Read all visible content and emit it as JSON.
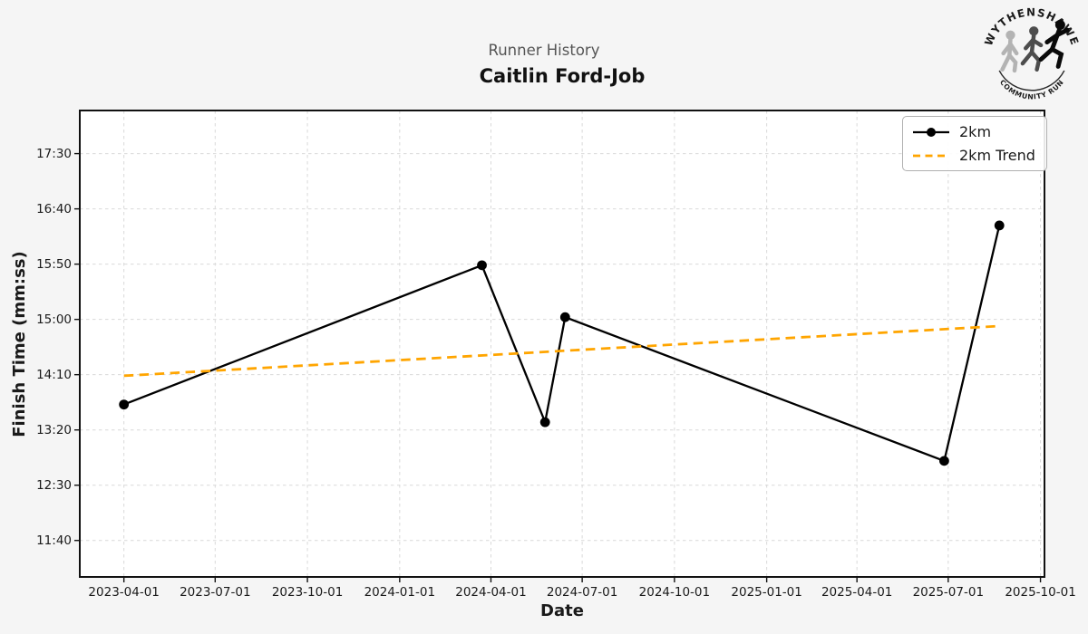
{
  "logo": {
    "top_text": "WYTHENSHAWE",
    "bottom_text": "COMMUNITY RUN"
  },
  "chart_data": {
    "type": "line",
    "subtitle": "Runner History",
    "title": "Caitlin Ford-Job",
    "xlabel": "Date",
    "ylabel": "Finish Time (mm:ss)",
    "x_ticks": [
      "2023-04-01",
      "2023-07-01",
      "2023-10-01",
      "2024-01-01",
      "2024-04-01",
      "2024-07-01",
      "2024-10-01",
      "2025-01-01",
      "2025-04-01",
      "2025-07-01",
      "2025-10-01"
    ],
    "y_ticks": [
      "11:40",
      "12:30",
      "13:20",
      "14:10",
      "15:00",
      "15:50",
      "16:40",
      "17:30"
    ],
    "xlim": [
      "2023-02-16",
      "2025-10-05"
    ],
    "ylim_seconds": [
      667,
      1089
    ],
    "grid": true,
    "legend_position": "upper right",
    "colors": {
      "series": "#000000",
      "trend": "#FFA500",
      "grid": "#d9d9d9",
      "figure_bg": "#f5f5f5",
      "plot_bg": "#ffffff"
    },
    "series": [
      {
        "name": "2km",
        "color": "#000000",
        "style": "solid",
        "marker": "circle",
        "points": [
          {
            "date": "2023-04-01",
            "time": "13:43"
          },
          {
            "date": "2024-03-23",
            "time": "15:49"
          },
          {
            "date": "2024-05-25",
            "time": "13:27"
          },
          {
            "date": "2024-06-14",
            "time": "15:02"
          },
          {
            "date": "2025-06-27",
            "time": "12:52"
          },
          {
            "date": "2025-08-21",
            "time": "16:25"
          }
        ]
      },
      {
        "name": "2km Trend",
        "color": "#FFA500",
        "style": "dashed",
        "marker": null,
        "points": [
          {
            "date": "2023-04-01",
            "time": "14:09"
          },
          {
            "date": "2025-08-21",
            "time": "14:54"
          }
        ]
      }
    ]
  }
}
